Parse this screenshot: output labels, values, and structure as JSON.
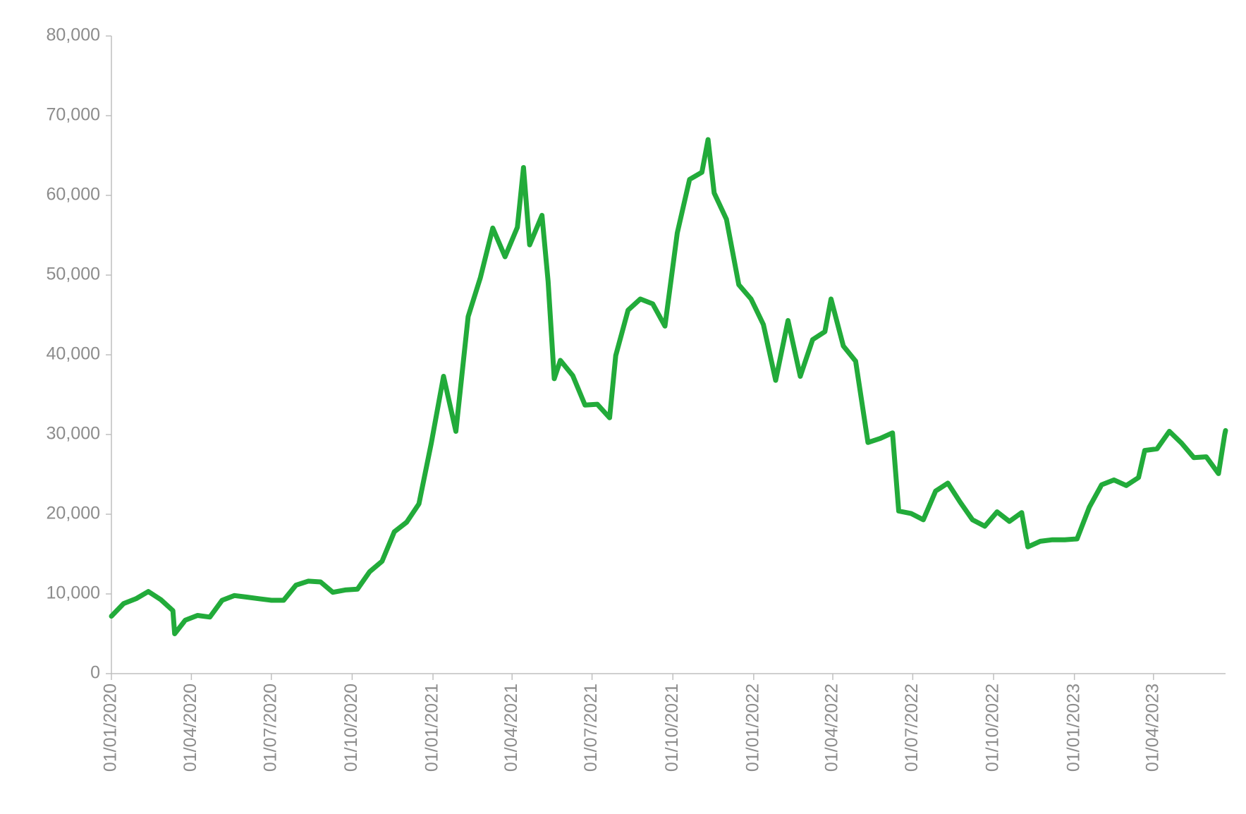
{
  "chart_data": {
    "type": "line",
    "color": "#22ab3a",
    "x": [
      "01/01/2020",
      "15/01/2020",
      "29/01/2020",
      "12/02/2020",
      "26/02/2020",
      "11/03/2020",
      "13/03/2020",
      "25/03/2020",
      "08/04/2020",
      "22/04/2020",
      "06/05/2020",
      "20/05/2020",
      "03/06/2020",
      "17/06/2020",
      "01/07/2020",
      "15/07/2020",
      "29/07/2020",
      "12/08/2020",
      "26/08/2020",
      "09/09/2020",
      "23/09/2020",
      "07/10/2020",
      "21/10/2020",
      "04/11/2020",
      "18/11/2020",
      "02/12/2020",
      "16/12/2020",
      "30/12/2020",
      "13/01/2021",
      "27/01/2021",
      "10/02/2021",
      "24/02/2021",
      "10/03/2021",
      "24/03/2021",
      "07/04/2021",
      "14/04/2021",
      "21/04/2021",
      "05/05/2021",
      "12/05/2021",
      "19/05/2021",
      "26/05/2021",
      "09/06/2021",
      "23/06/2021",
      "07/07/2021",
      "21/07/2021",
      "28/07/2021",
      "11/08/2021",
      "25/08/2021",
      "08/09/2021",
      "22/09/2021",
      "06/10/2021",
      "20/10/2021",
      "03/11/2021",
      "10/11/2021",
      "17/11/2021",
      "01/12/2021",
      "15/12/2021",
      "29/12/2021",
      "12/01/2022",
      "26/01/2022",
      "09/02/2022",
      "23/02/2022",
      "09/03/2022",
      "23/03/2022",
      "30/03/2022",
      "13/04/2022",
      "27/04/2022",
      "11/05/2022",
      "25/05/2022",
      "08/06/2022",
      "15/06/2022",
      "29/06/2022",
      "13/07/2022",
      "27/07/2022",
      "10/08/2022",
      "24/08/2022",
      "07/09/2022",
      "21/09/2022",
      "05/10/2022",
      "19/10/2022",
      "02/11/2022",
      "09/11/2022",
      "23/11/2022",
      "07/12/2022",
      "21/12/2022",
      "04/01/2023",
      "18/01/2023",
      "01/02/2023",
      "15/02/2023",
      "01/03/2023",
      "15/03/2023",
      "22/03/2023",
      "05/04/2023",
      "19/04/2023",
      "03/05/2023",
      "17/05/2023",
      "31/05/2023",
      "14/06/2023",
      "21/06/2023",
      "22/06/2023"
    ],
    "values": [
      7200,
      8800,
      9400,
      10300,
      9300,
      7900,
      5000,
      6700,
      7300,
      7100,
      9200,
      9800,
      9600,
      9400,
      9200,
      9200,
      11100,
      11600,
      11500,
      10200,
      10500,
      10600,
      12800,
      14100,
      17800,
      19000,
      21300,
      28900,
      37300,
      30400,
      44800,
      49700,
      55900,
      52300,
      56000,
      63500,
      53800,
      57500,
      49200,
      37000,
      39300,
      37400,
      33700,
      33800,
      32100,
      39900,
      45600,
      47000,
      46400,
      43600,
      55300,
      62000,
      62900,
      67000,
      60300,
      57000,
      48800,
      47000,
      43800,
      36800,
      44300,
      37300,
      41900,
      42900,
      47000,
      41100,
      39200,
      29000,
      29500,
      30200,
      20400,
      20100,
      19300,
      22900,
      23900,
      21500,
      19300,
      18500,
      20300,
      19100,
      20200,
      15900,
      16600,
      16800,
      16800,
      16900,
      20900,
      23700,
      24300,
      23600,
      24600,
      28000,
      28200,
      30400,
      28900,
      27100,
      27200,
      25100,
      30000,
      30500
    ],
    "xlim": [
      "01/01/2020",
      "22/06/2023"
    ],
    "xticks": [
      "01/01/2020",
      "01/04/2020",
      "01/07/2020",
      "01/10/2020",
      "01/01/2021",
      "01/04/2021",
      "01/07/2021",
      "01/10/2021",
      "01/01/2022",
      "01/04/2022",
      "01/07/2022",
      "01/10/2022",
      "01/01/2023",
      "01/04/2023"
    ],
    "ylim": [
      0,
      80000
    ],
    "yticks": [
      0,
      {
        "value": 10000,
        "label": "10,000"
      },
      {
        "value": 20000,
        "label": "20,000"
      },
      {
        "value": 30000,
        "label": "30,000"
      },
      {
        "value": 40000,
        "label": "40,000"
      },
      {
        "value": 50000,
        "label": "50,000"
      },
      {
        "value": 60000,
        "label": "60,000"
      },
      {
        "value": 70000,
        "label": "70,000"
      },
      {
        "value": 80000,
        "label": "80,000"
      }
    ]
  }
}
